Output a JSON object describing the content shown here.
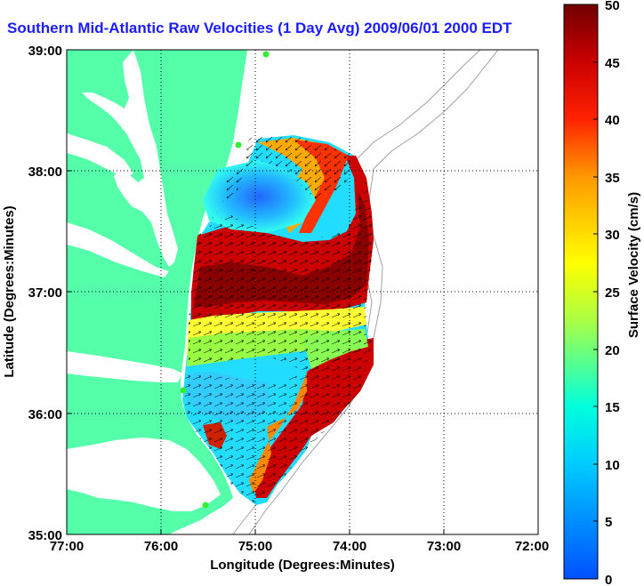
{
  "title": "Southern Mid-Atlantic Raw Velocities (1 Day Avg) 2009/06/01 2000 EDT",
  "x_axis": {
    "label": "Longitude (Degrees:Minutes)",
    "ticks": [
      "77:00",
      "76:00",
      "75:00",
      "74:00",
      "73:00",
      "72:00"
    ]
  },
  "y_axis": {
    "label": "Latitude (Degrees:Minutes)",
    "ticks": [
      "39:00",
      "38:00",
      "37:00",
      "36:00",
      "35:00"
    ]
  },
  "colorbar": {
    "label": "Surface Velocity (cm/s)",
    "ticks": [
      "50",
      "45",
      "40",
      "35",
      "30",
      "25",
      "20",
      "15",
      "10",
      "5",
      "0"
    ],
    "min": 0,
    "max": 50,
    "colors": [
      "#0000ff",
      "#00ffff",
      "#ffff00",
      "#ff8000",
      "#ff0000",
      "#800000"
    ]
  },
  "colors": {
    "land": "#55ffaa",
    "title": "#1c1cff",
    "grid": "#000000",
    "bathymetry": "#a0a0a0"
  },
  "chart_data": {
    "type": "heatmap",
    "xlim": [
      -77,
      -72
    ],
    "ylim": [
      35,
      39
    ],
    "grid": true,
    "legend": "right colorbar"
  }
}
